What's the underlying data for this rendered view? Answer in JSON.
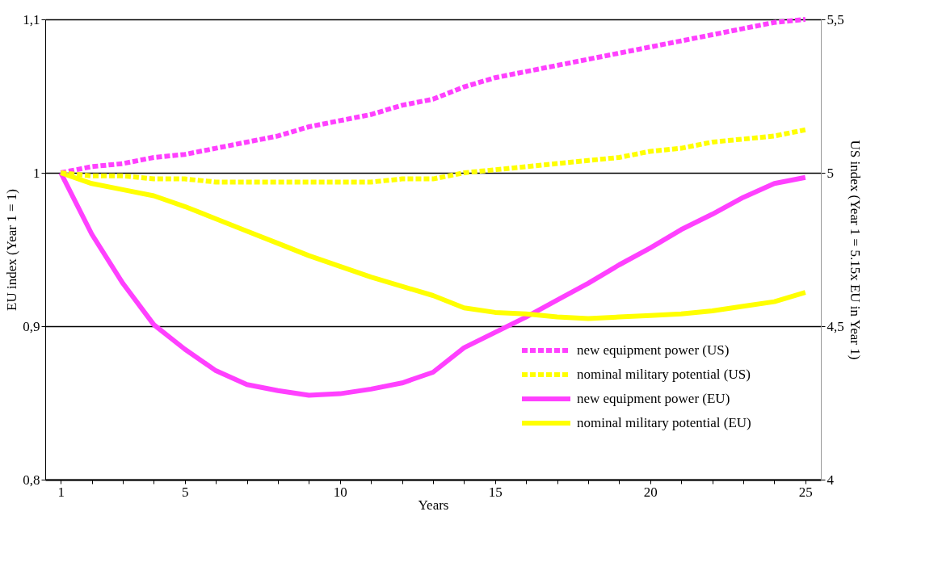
{
  "chart_data": {
    "type": "line",
    "xlabel": "Years",
    "ylabel": "EU index (Year 1 = 1)",
    "y2label": "US index (Year 1 = 5.15x EU in Year 1)",
    "categories": [
      "1",
      null,
      null,
      null,
      "5",
      null,
      null,
      null,
      null,
      "10",
      null,
      null,
      null,
      null,
      "15",
      null,
      null,
      null,
      null,
      "20",
      null,
      null,
      null,
      null,
      "25"
    ],
    "ylim": [
      0.8,
      1.1
    ],
    "yticks": [
      {
        "value": 0.8,
        "label": "0,8"
      },
      {
        "value": 0.9,
        "label": "0,9"
      },
      {
        "value": 1,
        "label": "1"
      },
      {
        "value": 1.1,
        "label": "1,1"
      }
    ],
    "y2lim": [
      4,
      5.5
    ],
    "y2ticks": [
      4,
      {
        "value": 4.5,
        "label": "4,5"
      },
      5,
      {
        "value": 5.5,
        "label": "5,5"
      }
    ],
    "grid": "y",
    "legend": "bottom right",
    "series": [
      {
        "name": "new equipment power (US)",
        "color": "#ff40ff",
        "axis": "y2",
        "line_style": "dashed",
        "values": [
          5.0,
          5.02,
          5.03,
          5.05,
          5.06,
          5.08,
          5.1,
          5.12,
          5.15,
          5.17,
          5.19,
          5.22,
          5.24,
          5.28,
          5.31,
          5.33,
          5.35,
          5.37,
          5.39,
          5.41,
          5.43,
          5.45,
          5.47,
          5.49,
          5.5
        ]
      },
      {
        "name": "nominal military potential (US)",
        "color": "#ffff00",
        "axis": "y2",
        "line_style": "dashed",
        "values": [
          5.0,
          4.99,
          4.99,
          4.98,
          4.98,
          4.97,
          4.97,
          4.97,
          4.97,
          4.97,
          4.97,
          4.98,
          4.98,
          5.0,
          5.01,
          5.02,
          5.03,
          5.04,
          5.05,
          5.07,
          5.08,
          5.1,
          5.11,
          5.12,
          5.14
        ]
      },
      {
        "name": "new equipment power (EU)",
        "color": "#ff40ff",
        "line_style": "solid",
        "values": [
          1.0,
          0.96,
          0.928,
          0.901,
          0.885,
          0.871,
          0.862,
          0.858,
          0.855,
          0.856,
          0.859,
          0.863,
          0.87,
          0.886,
          0.896,
          0.906,
          0.917,
          0.928,
          0.94,
          0.951,
          0.963,
          0.973,
          0.984,
          0.993,
          0.997
        ]
      },
      {
        "name": "nominal military potential (EU)",
        "color": "#ffff00",
        "line_style": "solid",
        "values": [
          1.0,
          0.993,
          0.989,
          0.985,
          0.978,
          0.97,
          0.962,
          0.954,
          0.946,
          0.939,
          0.932,
          0.926,
          0.92,
          0.912,
          0.909,
          0.908,
          0.906,
          0.905,
          0.906,
          0.907,
          0.908,
          0.91,
          0.913,
          0.916,
          0.922
        ]
      }
    ]
  }
}
